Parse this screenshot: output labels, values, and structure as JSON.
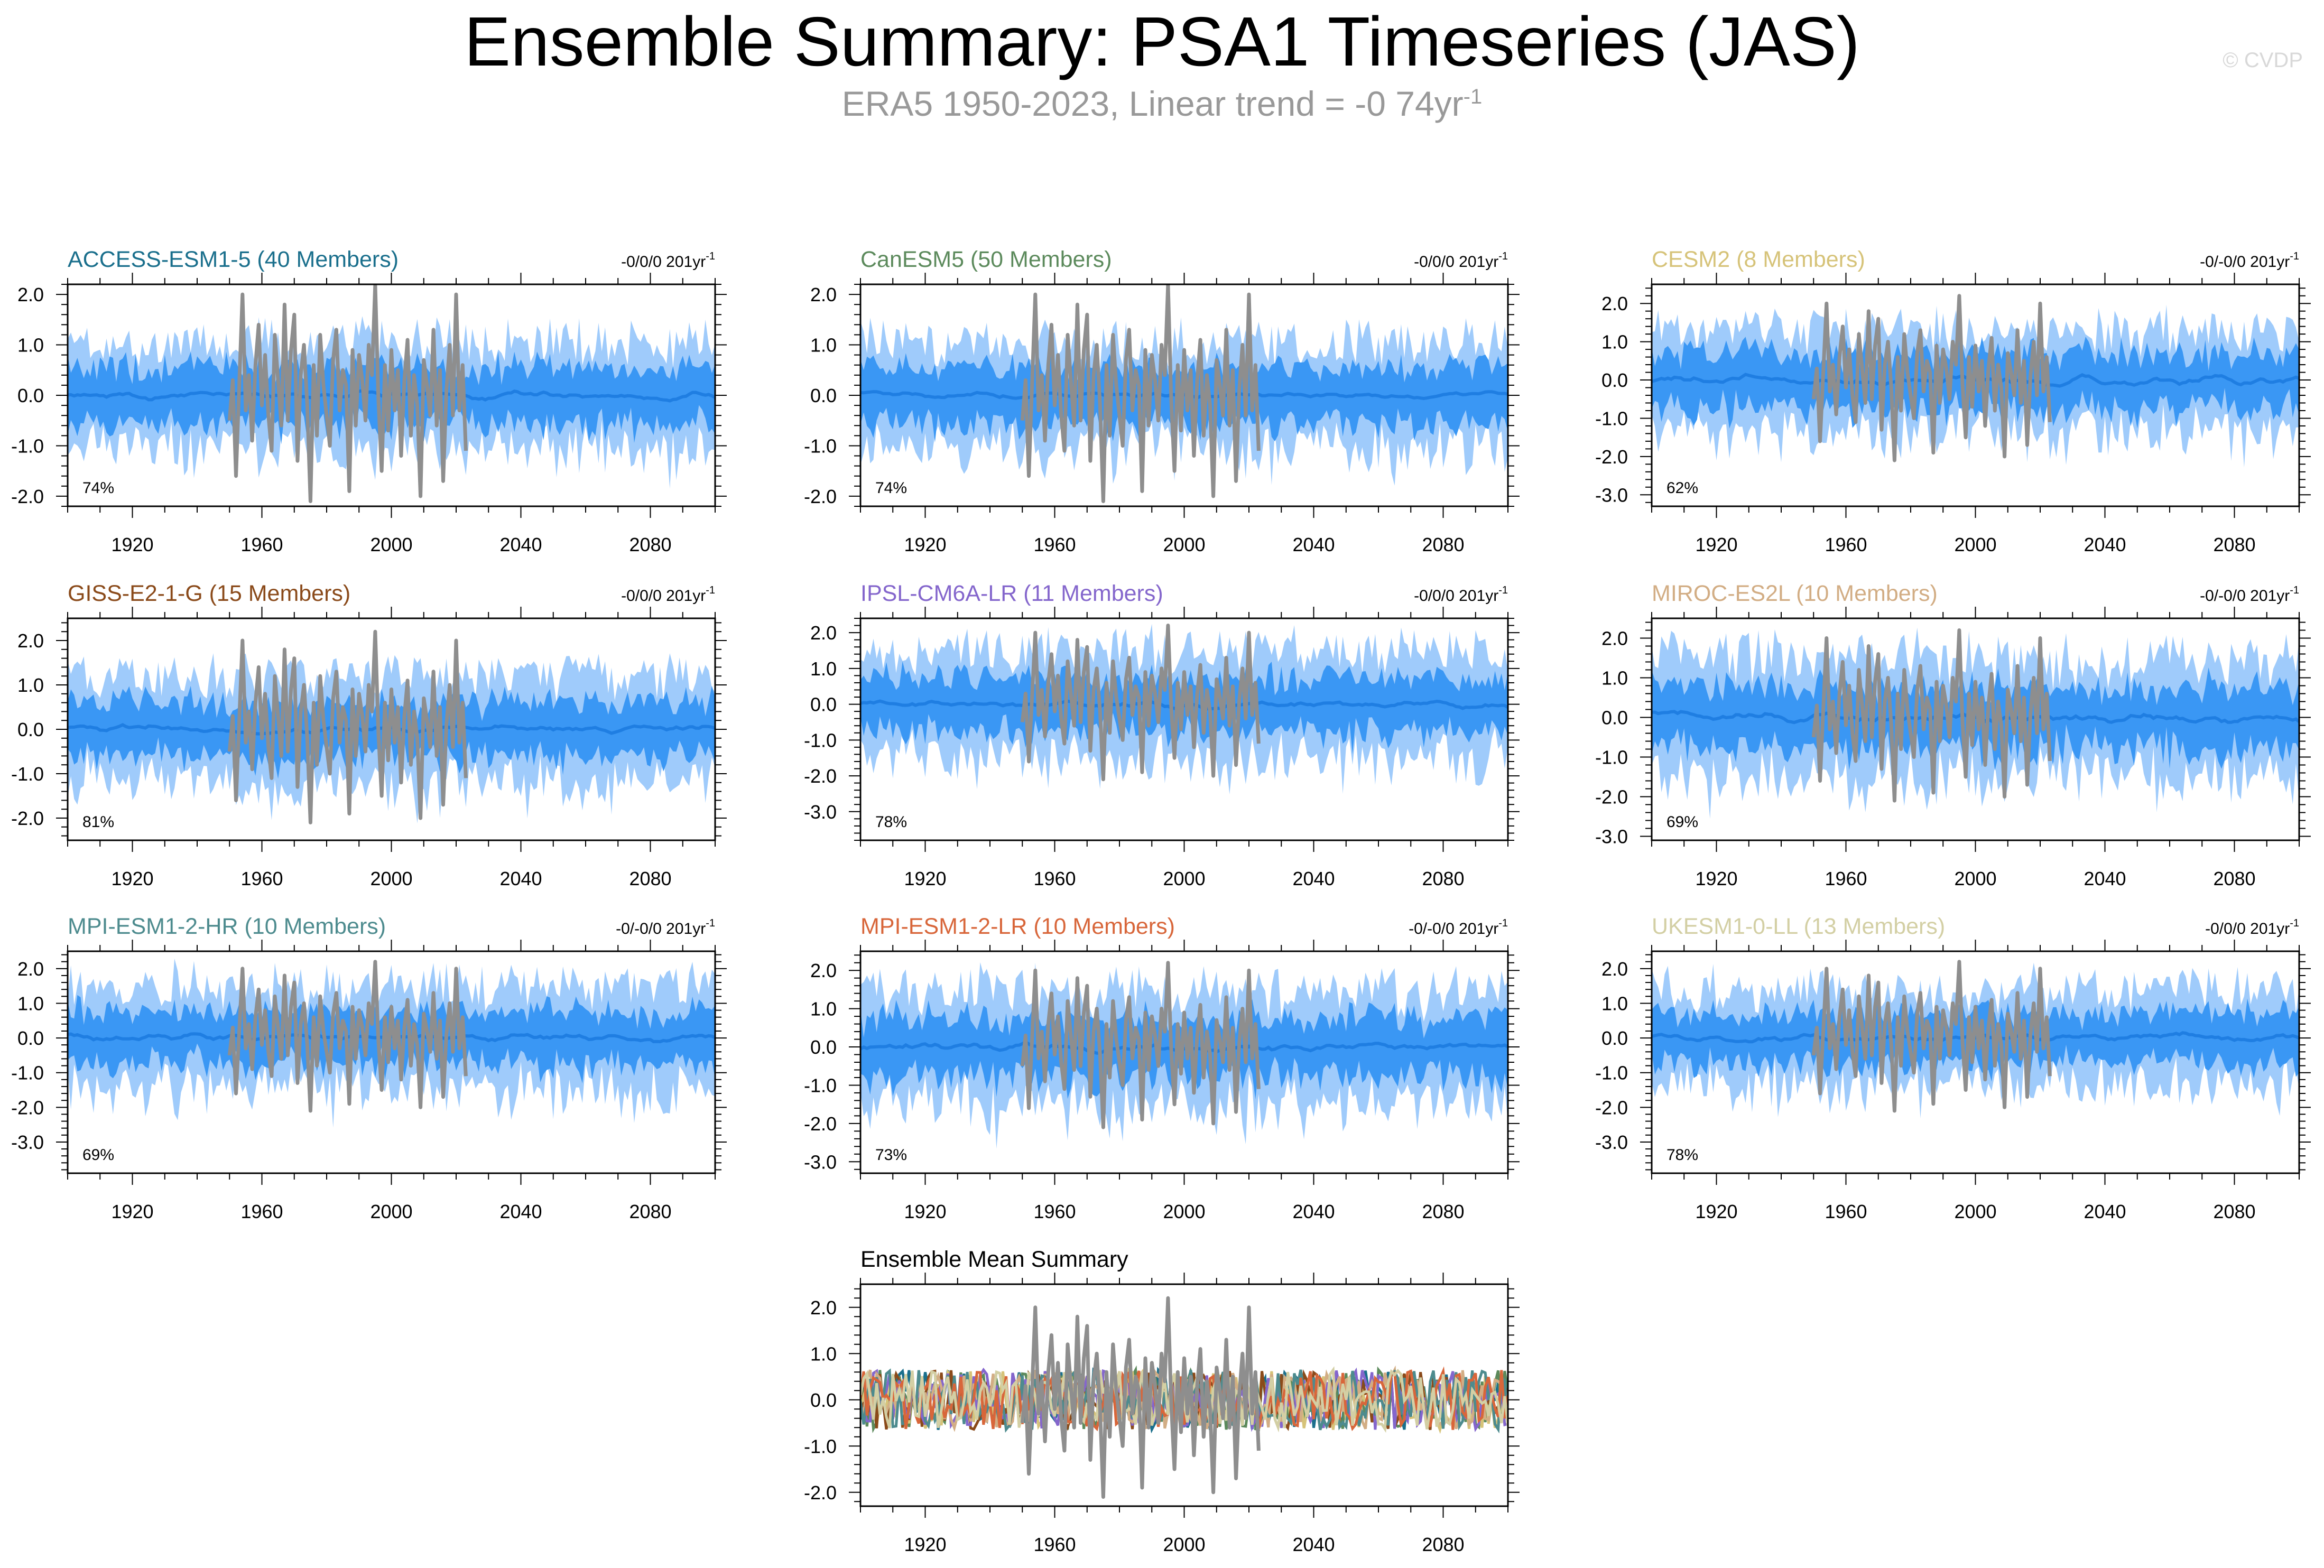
{
  "title": "Ensemble Summary: PSA1 Timeseries (JAS)",
  "subtitle": {
    "text": "ERA5 1950-2023, Linear trend = -0 74yr",
    "sup": "-1"
  },
  "credit": "© CVDP",
  "colors": {
    "outer_band": "#9fcbfb",
    "inner_band": "#3a97f4",
    "ensemble_mean_line": "#1f7ee2",
    "observations": "#8e8e8e",
    "frame": "#000000"
  },
  "x_ticks": [
    "1920",
    "1960",
    "2000",
    "2040",
    "2080"
  ],
  "x_tick_values": [
    1920,
    1960,
    2000,
    2040,
    2080
  ],
  "panels": [
    {
      "name": "ACCESS-ESM1-5 (40 Members)",
      "color": "#1a6f8c",
      "trend": "-0/0/0 201yr",
      "pct": "74%",
      "yticks": [
        "2.0",
        "1.0",
        "0.0",
        "-1.0",
        "-2.0"
      ],
      "ytick_values": [
        2,
        1,
        0,
        -1,
        -2
      ],
      "ylim": [
        -2.2,
        2.2
      ],
      "inner_amp": 0.55,
      "outer_amp": 1.05,
      "mean_amp": 0.15
    },
    {
      "name": "CanESM5 (50 Members)",
      "color": "#5c8a5c",
      "trend": "-0/0/0 201yr",
      "pct": "74%",
      "yticks": [
        "2.0",
        "1.0",
        "0.0",
        "-1.0",
        "-2.0"
      ],
      "ytick_values": [
        2,
        1,
        0,
        -1,
        -2
      ],
      "ylim": [
        -2.2,
        2.2
      ],
      "inner_amp": 0.55,
      "outer_amp": 1.05,
      "mean_amp": 0.12
    },
    {
      "name": "CESM2 (8 Members)",
      "color": "#d6c379",
      "trend": "-0/-0/0 201yr",
      "pct": "62%",
      "yticks": [
        "2.0",
        "1.0",
        "0.0",
        "-1.0",
        "-2.0",
        "-3.0"
      ],
      "ytick_values": [
        2,
        1,
        0,
        -1,
        -2,
        -3
      ],
      "ylim": [
        -3.3,
        2.5
      ],
      "inner_amp": 0.7,
      "outer_amp": 1.3,
      "mean_amp": 0.25
    },
    {
      "name": "GISS-E2-1-G (15 Members)",
      "color": "#8a4a1a",
      "trend": "-0/0/0 201yr",
      "pct": "81%",
      "yticks": [
        "2.0",
        "1.0",
        "0.0",
        "-1.0",
        "-2.0"
      ],
      "ytick_values": [
        2,
        1,
        0,
        -1,
        -2
      ],
      "ylim": [
        -2.5,
        2.5
      ],
      "inner_amp": 0.6,
      "outer_amp": 1.2,
      "mean_amp": 0.18
    },
    {
      "name": "IPSL-CM6A-LR (11 Members)",
      "color": "#8466cc",
      "trend": "-0/0/0 201yr",
      "pct": "78%",
      "yticks": [
        "2.0",
        "1.0",
        "0.0",
        "-1.0",
        "-2.0",
        "-3.0"
      ],
      "ytick_values": [
        2,
        1,
        0,
        -1,
        -2,
        -3
      ],
      "ylim": [
        -3.8,
        2.4
      ],
      "inner_amp": 0.75,
      "outer_amp": 1.5,
      "mean_amp": 0.22
    },
    {
      "name": "MIROC-ES2L (10 Members)",
      "color": "#d2ad84",
      "trend": "-0/-0/0 201yr",
      "pct": "69%",
      "yticks": [
        "2.0",
        "1.0",
        "0.0",
        "-1.0",
        "-2.0",
        "-3.0"
      ],
      "ytick_values": [
        2,
        1,
        0,
        -1,
        -2,
        -3
      ],
      "ylim": [
        -3.1,
        2.5
      ],
      "inner_amp": 0.75,
      "outer_amp": 1.5,
      "mean_amp": 0.25
    },
    {
      "name": "MPI-ESM1-2-HR (10 Members)",
      "color": "#4d8b8e",
      "trend": "-0/-0/0 201yr",
      "pct": "69%",
      "yticks": [
        "2.0",
        "1.0",
        "0.0",
        "-1.0",
        "-2.0",
        "-3.0"
      ],
      "ytick_values": [
        2,
        1,
        0,
        -1,
        -2,
        -3
      ],
      "ylim": [
        -3.9,
        2.5
      ],
      "inner_amp": 0.75,
      "outer_amp": 1.5,
      "mean_amp": 0.25
    },
    {
      "name": "MPI-ESM1-2-LR (10 Members)",
      "color": "#d8663a",
      "trend": "-0/-0/0 201yr",
      "pct": "73%",
      "yticks": [
        "2.0",
        "1.0",
        "0.0",
        "-1.0",
        "-2.0",
        "-3.0"
      ],
      "ytick_values": [
        2,
        1,
        0,
        -1,
        -2,
        -3
      ],
      "ylim": [
        -3.3,
        2.5
      ],
      "inner_amp": 0.75,
      "outer_amp": 1.5,
      "mean_amp": 0.25
    },
    {
      "name": "UKESM1-0-LL (13 Members)",
      "color": "#d3cfa4",
      "trend": "-0/0/0 201yr",
      "pct": "78%",
      "yticks": [
        "2.0",
        "1.0",
        "0.0",
        "-1.0",
        "-2.0",
        "-3.0"
      ],
      "ytick_values": [
        2,
        1,
        0,
        -1,
        -2,
        -3
      ],
      "ylim": [
        -3.9,
        2.5
      ],
      "inner_amp": 0.7,
      "outer_amp": 1.4,
      "mean_amp": 0.22
    }
  ],
  "ensemble_mean_panel": {
    "title": "Ensemble Mean Summary",
    "yticks": [
      "2.0",
      "1.0",
      "0.0",
      "-1.0",
      "-2.0"
    ],
    "ytick_values": [
      2,
      1,
      0,
      -1,
      -2
    ],
    "ylim": [
      -2.3,
      2.5
    ]
  },
  "chart_data": {
    "type": "line",
    "title": "Ensemble Summary: PSA1 Timeseries (JAS)",
    "subtitle": "ERA5 1950-2023, Linear trend = -0 74yr-1",
    "xlim": [
      1900,
      2100
    ],
    "x_ticks": [
      1920,
      1960,
      2000,
      2040,
      2080
    ],
    "obs_years": [
      1950,
      1951,
      1952,
      1953,
      1954,
      1955,
      1956,
      1957,
      1958,
      1959,
      1960,
      1961,
      1962,
      1963,
      1964,
      1965,
      1966,
      1967,
      1968,
      1969,
      1970,
      1971,
      1972,
      1973,
      1974,
      1975,
      1976,
      1977,
      1978,
      1979,
      1980,
      1981,
      1982,
      1983,
      1984,
      1985,
      1986,
      1987,
      1988,
      1989,
      1990,
      1991,
      1992,
      1993,
      1994,
      1995,
      1996,
      1997,
      1998,
      1999,
      2000,
      2001,
      2002,
      2003,
      2004,
      2005,
      2006,
      2007,
      2008,
      2009,
      2010,
      2011,
      2012,
      2013,
      2014,
      2015,
      2016,
      2017,
      2018,
      2019,
      2020,
      2021,
      2022,
      2023
    ],
    "obs_values": [
      -0.5,
      0.3,
      -1.6,
      0.2,
      2.0,
      -0.3,
      0.4,
      -0.9,
      0.6,
      1.4,
      -0.2,
      0.8,
      -0.4,
      -1.1,
      1.2,
      0.3,
      -0.6,
      1.8,
      -0.5,
      0.9,
      1.6,
      -1.3,
      0.4,
      1.0,
      -0.2,
      -2.1,
      0.6,
      -0.8,
      1.2,
      0.2,
      -0.4,
      -1.0,
      0.7,
      1.3,
      -0.3,
      0.5,
      0.2,
      -1.9,
      0.9,
      -0.6,
      0.8,
      0.3,
      -0.5,
      1.0,
      0.4,
      2.2,
      -0.1,
      -1.5,
      0.6,
      -0.7,
      0.9,
      -0.3,
      0.5,
      -1.2,
      0.3,
      1.1,
      -0.8,
      0.4,
      -0.2,
      -2.0,
      0.7,
      0.2,
      -0.4,
      1.3,
      -0.6,
      0.5,
      -1.7,
      0.1,
      1.0,
      -0.4,
      2.0,
      -0.3,
      0.6,
      -1.1
    ],
    "series": [
      {
        "name": "ACCESS-ESM1-5 (40 Members)",
        "members": 40,
        "trend": "-0/0/0 201yr-1",
        "pct_within": "74%"
      },
      {
        "name": "CanESM5 (50 Members)",
        "members": 50,
        "trend": "-0/0/0 201yr-1",
        "pct_within": "74%"
      },
      {
        "name": "CESM2 (8 Members)",
        "members": 8,
        "trend": "-0/-0/0 201yr-1",
        "pct_within": "62%"
      },
      {
        "name": "GISS-E2-1-G (15 Members)",
        "members": 15,
        "trend": "-0/0/0 201yr-1",
        "pct_within": "81%"
      },
      {
        "name": "IPSL-CM6A-LR (11 Members)",
        "members": 11,
        "trend": "-0/0/0 201yr-1",
        "pct_within": "78%"
      },
      {
        "name": "MIROC-ES2L (10 Members)",
        "members": 10,
        "trend": "-0/-0/0 201yr-1",
        "pct_within": "69%"
      },
      {
        "name": "MPI-ESM1-2-HR (10 Members)",
        "members": 10,
        "trend": "-0/-0/0 201yr-1",
        "pct_within": "69%"
      },
      {
        "name": "MPI-ESM1-2-LR (10 Members)",
        "members": 10,
        "trend": "-0/-0/0 201yr-1",
        "pct_within": "73%"
      },
      {
        "name": "UKESM1-0-LL (13 Members)",
        "members": 13,
        "trend": "-0/0/0 201yr-1",
        "pct_within": "78%"
      }
    ]
  }
}
